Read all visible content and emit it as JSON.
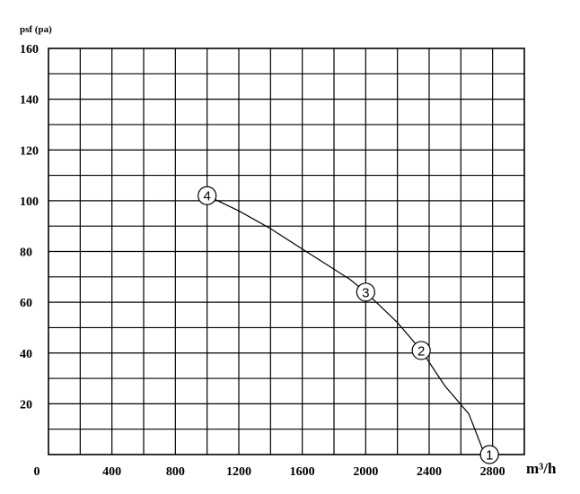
{
  "chart_data": {
    "type": "line",
    "title": "",
    "ylabel": "psf (pa)",
    "xlabel": "m³/h",
    "xlim": [
      0,
      3000
    ],
    "ylim": [
      0,
      160
    ],
    "x_ticks": [
      {
        "value": 0,
        "label": "0"
      },
      {
        "value": 400,
        "label": "400"
      },
      {
        "value": 800,
        "label": "800"
      },
      {
        "value": 1200,
        "label": "1200"
      },
      {
        "value": 1600,
        "label": "1600"
      },
      {
        "value": 2000,
        "label": "2000"
      },
      {
        "value": 2400,
        "label": "2400"
      },
      {
        "value": 2800,
        "label": "2800"
      }
    ],
    "y_ticks": [
      {
        "value": 20,
        "label": "20"
      },
      {
        "value": 40,
        "label": "40"
      },
      {
        "value": 60,
        "label": "60"
      },
      {
        "value": 80,
        "label": "80"
      },
      {
        "value": 100,
        "label": "100"
      },
      {
        "value": 120,
        "label": "120"
      },
      {
        "value": 140,
        "label": "140"
      },
      {
        "value": 160,
        "label": "160"
      }
    ],
    "grid": true,
    "grid_x_step": 200,
    "grid_y_step": 10,
    "series": [
      {
        "x": [
          1000,
          1200,
          1400,
          1600,
          1800,
          1900,
          2000,
          2200,
          2350,
          2500,
          2650,
          2750
        ],
        "y": [
          102,
          96,
          89,
          81,
          73,
          69,
          64,
          52,
          41,
          27,
          16,
          0
        ],
        "color": "#000000"
      }
    ],
    "annotations": [
      {
        "label": "1",
        "x": 2780,
        "y": 0
      },
      {
        "label": "2",
        "x": 2350,
        "y": 41
      },
      {
        "label": "3",
        "x": 2000,
        "y": 64
      },
      {
        "label": "4",
        "x": 1000,
        "y": 102
      }
    ]
  }
}
